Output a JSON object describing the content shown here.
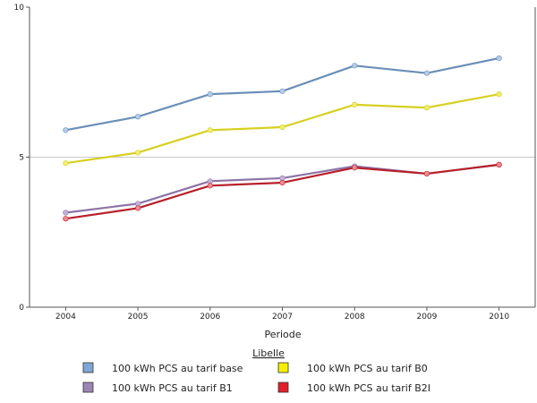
{
  "chart_data": {
    "type": "line",
    "x": [
      "2004",
      "2005",
      "2006",
      "2007",
      "2008",
      "2009",
      "2010"
    ],
    "xlabel": "Periode",
    "ylabel": "",
    "ylim": [
      0,
      10
    ],
    "yticks": [
      "0",
      "5",
      "10"
    ],
    "grid": "horizontal",
    "legend_title": "Libelle",
    "legend_placement": "bottom",
    "series": [
      {
        "name": "100 kWh PCS au tarif base",
        "color": "#6a8fb8",
        "marker_color": "#b7cbe6",
        "swatch": "#7ea6d6",
        "values": [
          5.9,
          6.35,
          7.1,
          7.2,
          8.05,
          7.8,
          8.3
        ]
      },
      {
        "name": "100 kWh PCS au tarif B1",
        "color": "#8c74a8",
        "marker_color": "#c3b3d9",
        "swatch": "#9a85b5",
        "values": [
          3.15,
          3.45,
          4.2,
          4.3,
          4.7,
          4.45,
          4.75
        ]
      },
      {
        "name": "100 kWh PCS au tarif B0",
        "color": "#d6d020",
        "marker_color": "#f0ec70",
        "swatch": "#f5ee00",
        "values": [
          4.8,
          5.15,
          5.9,
          6.0,
          6.75,
          6.65,
          7.1
        ]
      },
      {
        "name": "100 kWh PCS au tarif B2I",
        "color": "#b8202a",
        "marker_color": "#f08a90",
        "swatch": "#e0202a",
        "values": [
          2.95,
          3.3,
          4.05,
          4.15,
          4.65,
          4.45,
          4.75
        ]
      }
    ]
  }
}
